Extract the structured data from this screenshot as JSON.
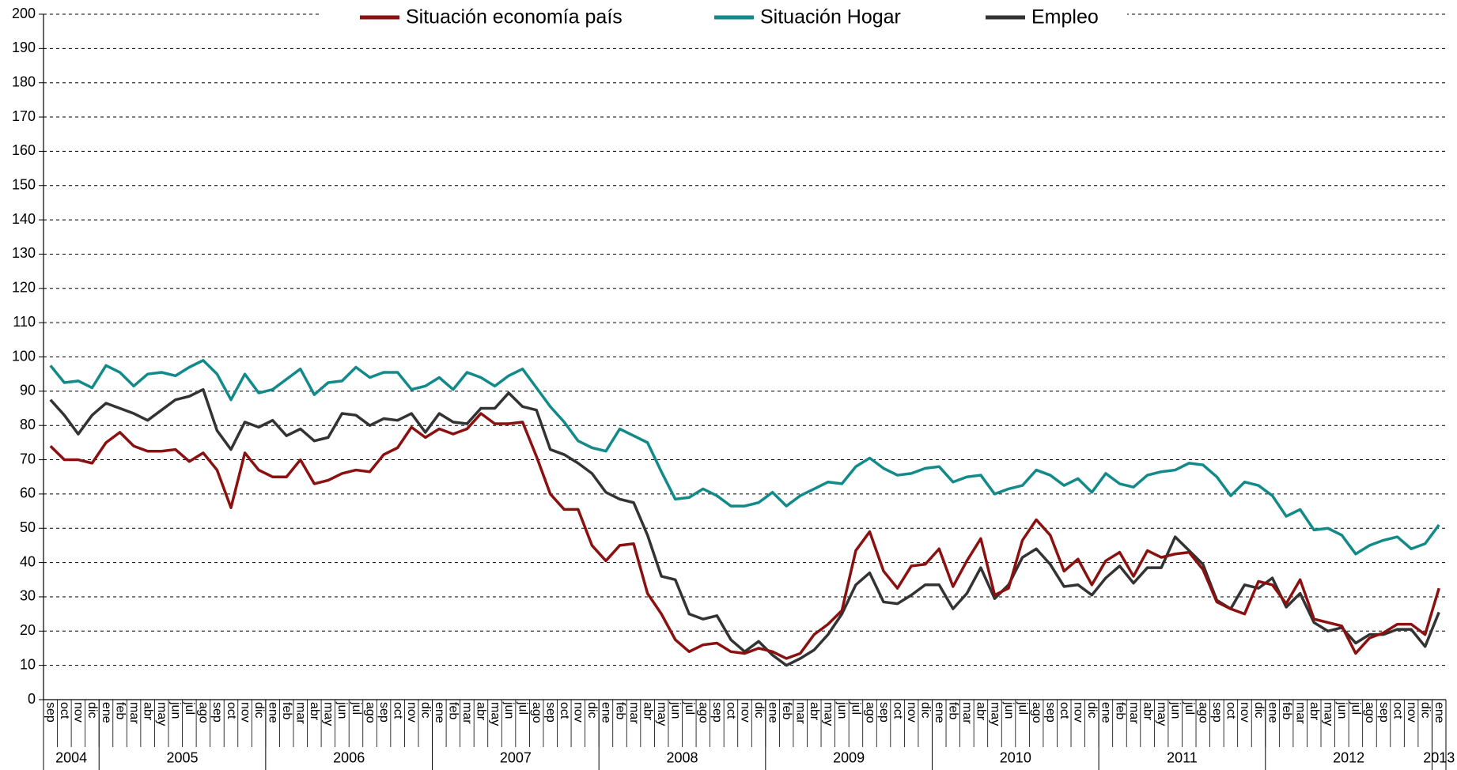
{
  "chart_data": {
    "type": "line",
    "categories": [
      "sep",
      "oct",
      "nov",
      "dic",
      "ene",
      "feb",
      "mar",
      "abr",
      "may",
      "jun",
      "jul",
      "ago",
      "sep",
      "oct",
      "nov",
      "dic",
      "ene",
      "feb",
      "mar",
      "abr",
      "may",
      "jun",
      "jul",
      "ago",
      "sep",
      "oct",
      "nov",
      "dic",
      "ene",
      "feb",
      "mar",
      "abr",
      "may",
      "jun",
      "jul",
      "ago",
      "sep",
      "oct",
      "nov",
      "dic",
      "ene",
      "feb",
      "mar",
      "abr",
      "may",
      "jun",
      "jul",
      "ago",
      "sep",
      "oct",
      "nov",
      "dic",
      "ene",
      "feb",
      "mar",
      "abr",
      "may",
      "jun",
      "jul",
      "ago",
      "sep",
      "oct",
      "nov",
      "dic",
      "ene",
      "feb",
      "mar",
      "abr",
      "may",
      "jun",
      "jul",
      "ago",
      "sep",
      "oct",
      "nov",
      "dic",
      "ene",
      "feb",
      "mar",
      "abr",
      "may",
      "jun",
      "jul",
      "ago",
      "sep",
      "oct",
      "nov",
      "dic",
      "ene",
      "feb",
      "mar",
      "abr",
      "may",
      "jun",
      "jul",
      "ago",
      "sep",
      "oct",
      "nov",
      "dic",
      "ene"
    ],
    "years": [
      "2004",
      "2005",
      "2006",
      "2007",
      "2008",
      "2009",
      "2010",
      "2011",
      "2012",
      "2013"
    ],
    "ylim": [
      0,
      200
    ],
    "yticks": [
      0,
      10,
      20,
      30,
      40,
      50,
      60,
      70,
      80,
      90,
      100,
      110,
      120,
      130,
      140,
      150,
      160,
      170,
      180,
      190,
      200
    ],
    "grid": true,
    "series": [
      {
        "name": "Situación economía país",
        "color": "#8b1010",
        "values": [
          74,
          70,
          70,
          69,
          75,
          78,
          74,
          72.5,
          72.5,
          73,
          69.5,
          72,
          67,
          56,
          72,
          67,
          65,
          65,
          70,
          63,
          64,
          66,
          67,
          66.5,
          71.5,
          73.5,
          79.5,
          76.5,
          79,
          77.5,
          79,
          83.5,
          80.5,
          80.5,
          81,
          71,
          60,
          55.5,
          55.5,
          45,
          40.5,
          45,
          45.5,
          31,
          25,
          17.5,
          14,
          16,
          16.5,
          14,
          13.5,
          15,
          14,
          12,
          13.5,
          19,
          22,
          26,
          43.5,
          49,
          37.5,
          32.5,
          39,
          39.5,
          44,
          33,
          40.5,
          47,
          30.5,
          32.5,
          46.5,
          52.5,
          48,
          37.5,
          41,
          33.5,
          40.5,
          43,
          36,
          43.5,
          41.5,
          42.5,
          43,
          38,
          28.5,
          26.5,
          25,
          34.5,
          33.5,
          28,
          35,
          23.5,
          22.5,
          21.5,
          13.5,
          18,
          19.5,
          22,
          22,
          19,
          32.5
        ]
      },
      {
        "name": "Situación Hogar",
        "color": "#138a8a",
        "values": [
          97.5,
          92.5,
          93,
          91,
          97.5,
          95.5,
          91.5,
          95,
          95.5,
          94.5,
          97,
          99,
          95,
          87.5,
          95,
          89.5,
          90.5,
          93.5,
          96.5,
          89,
          92.5,
          93,
          97,
          94,
          95.5,
          95.5,
          90.5,
          91.5,
          94,
          90.5,
          95.5,
          94,
          91.5,
          94.5,
          96.5,
          91,
          85.5,
          81,
          75.5,
          73.5,
          72.5,
          79,
          77,
          75,
          66.5,
          58.5,
          59,
          61.5,
          59.5,
          56.5,
          56.5,
          57.5,
          60.5,
          56.5,
          59.5,
          61.5,
          63.5,
          63,
          68,
          70.5,
          67.5,
          65.5,
          66,
          67.5,
          68,
          63.5,
          65,
          65.5,
          60,
          61.5,
          62.5,
          67,
          65.5,
          62.5,
          64.5,
          60.5,
          66,
          63,
          62,
          65.5,
          66.5,
          67,
          69,
          68.5,
          65,
          59.5,
          63.5,
          62.5,
          59.5,
          53.5,
          55.5,
          49.5,
          50,
          48,
          42.5,
          45,
          46.5,
          47.5,
          44,
          45.5,
          51
        ]
      },
      {
        "name": "Empleo",
        "color": "#333333",
        "values": [
          87.5,
          83,
          77.5,
          83,
          86.5,
          85,
          83.5,
          81.5,
          84.5,
          87.5,
          88.5,
          90.5,
          78.5,
          73,
          81,
          79.5,
          81.5,
          77,
          79,
          75.5,
          76.5,
          83.5,
          83,
          80,
          82,
          81.5,
          83.5,
          78,
          83.5,
          81,
          80.5,
          85,
          85,
          89.5,
          85.5,
          84.5,
          73,
          71.5,
          69,
          66,
          60.5,
          58.5,
          57.5,
          48,
          36,
          35,
          25,
          23.5,
          24.5,
          17.5,
          14,
          17,
          13,
          10,
          12,
          14.5,
          19,
          25,
          33.5,
          37,
          28.5,
          28,
          30.5,
          33.5,
          33.5,
          26.5,
          31,
          38.5,
          29.5,
          33.5,
          41.5,
          44,
          39.5,
          33,
          33.5,
          30.5,
          35.5,
          39,
          34,
          38.5,
          38.5,
          47.5,
          43.5,
          39.5,
          29,
          26.5,
          33.5,
          32.5,
          35.5,
          27,
          31,
          22.5,
          20,
          21,
          16.5,
          19,
          19,
          20.5,
          20.5,
          15.5,
          25.5
        ]
      }
    ]
  }
}
